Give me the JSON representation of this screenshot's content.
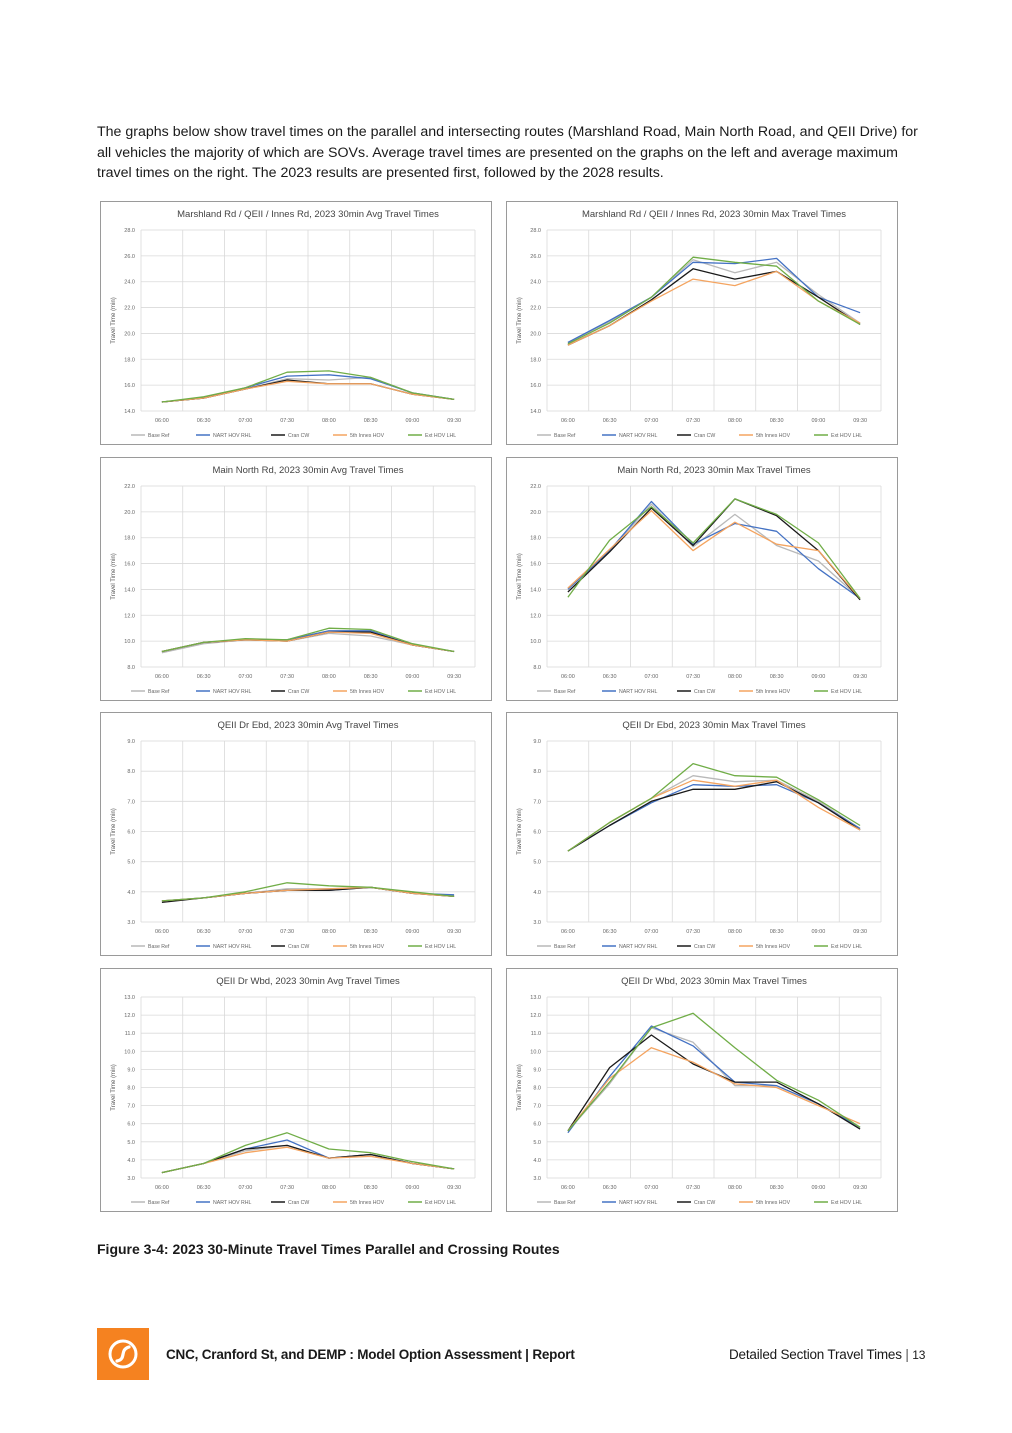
{
  "intro_text": "The graphs below show travel times on the parallel and intersecting routes (Marshland Road, Main North Road, and QEII Drive) for all vehicles the majority of which are SOVs. Average travel times are presented on the graphs on the left and average maximum travel times on the right.  The 2023 results are presented first, followed by the 2028 results.",
  "caption": "Figure 3-4: 2023 30-Minute Travel Times Parallel and Crossing Routes",
  "footer": {
    "report_title": "CNC, Cranford St, and DEMP : Model Option Assessment | Report",
    "section": "Detailed Section Travel Times",
    "separator": "|",
    "page": "13"
  },
  "series_colors": [
    "#b9b9b9",
    "#4472c4",
    "#1a1a1a",
    "#f4a460",
    "#70ad47"
  ],
  "chart_data": [
    {
      "type": "line",
      "title": "Marshland Rd / QEII / Innes Rd, 2023 30min Avg Travel Times",
      "ylabel": "Travel Time (min)",
      "xlabel": "",
      "x": [
        "06:00",
        "06:30",
        "07:00",
        "07:30",
        "08:00",
        "08:30",
        "09:00",
        "09:30"
      ],
      "ylim": [
        14,
        28
      ],
      "ystep": 2,
      "grid": true,
      "legend": "bottom",
      "series": [
        {
          "name": "Base Ref",
          "values": [
            14.7,
            15.0,
            15.7,
            16.5,
            16.4,
            16.6,
            15.4,
            14.9
          ]
        },
        {
          "name": "NART HOV RHL",
          "values": [
            14.7,
            15.0,
            15.8,
            16.7,
            16.8,
            16.5,
            15.4,
            14.9
          ]
        },
        {
          "name": "Cran CW",
          "values": [
            14.7,
            15.0,
            15.7,
            16.4,
            16.1,
            16.1,
            15.3,
            14.9
          ]
        },
        {
          "name": "5th Innes HOV",
          "values": [
            14.7,
            15.0,
            15.7,
            16.3,
            16.1,
            16.1,
            15.3,
            14.9
          ]
        },
        {
          "name": "Ext HOV LHL",
          "values": [
            14.7,
            15.1,
            15.8,
            17.0,
            17.1,
            16.6,
            15.4,
            14.9
          ]
        }
      ]
    },
    {
      "type": "line",
      "title": "Marshland Rd / QEII / Innes Rd, 2023 30min Max Travel Times",
      "ylabel": "Travel Time (min)",
      "xlabel": "",
      "x": [
        "06:00",
        "06:30",
        "07:00",
        "07:30",
        "08:00",
        "08:30",
        "09:00",
        "09:30"
      ],
      "ylim": [
        14,
        28
      ],
      "ystep": 2,
      "grid": true,
      "legend": "bottom",
      "series": [
        {
          "name": "Base Ref",
          "values": [
            19.3,
            20.9,
            22.8,
            25.7,
            24.7,
            25.5,
            23.0,
            20.8
          ]
        },
        {
          "name": "NART HOV RHL",
          "values": [
            19.3,
            21.0,
            22.8,
            25.5,
            25.4,
            25.8,
            22.8,
            21.6
          ]
        },
        {
          "name": "Cran CW",
          "values": [
            19.1,
            20.6,
            22.6,
            25.0,
            24.2,
            24.8,
            22.8,
            20.7
          ]
        },
        {
          "name": "5th Innes HOV",
          "values": [
            19.1,
            20.6,
            22.5,
            24.2,
            23.7,
            24.8,
            22.5,
            20.8
          ]
        },
        {
          "name": "Ext HOV LHL",
          "values": [
            19.2,
            20.8,
            22.8,
            25.9,
            25.5,
            25.2,
            22.5,
            20.7
          ]
        }
      ]
    },
    {
      "type": "line",
      "title": "Main North Rd, 2023 30min Avg Travel Times",
      "ylabel": "Travel Time (min)",
      "xlabel": "",
      "x": [
        "06:00",
        "06:30",
        "07:00",
        "07:30",
        "08:00",
        "08:30",
        "09:00",
        "09:30"
      ],
      "ylim": [
        8,
        22
      ],
      "ystep": 2,
      "grid": true,
      "legend": "bottom",
      "series": [
        {
          "name": "Base Ref",
          "values": [
            9.1,
            9.8,
            10.1,
            10.0,
            10.6,
            10.4,
            9.7,
            9.2
          ]
        },
        {
          "name": "NART HOV RHL",
          "values": [
            9.2,
            9.9,
            10.1,
            10.1,
            10.8,
            10.8,
            9.7,
            9.2
          ]
        },
        {
          "name": "Cran CW",
          "values": [
            9.2,
            9.9,
            10.1,
            10.0,
            10.7,
            10.7,
            9.7,
            9.2
          ]
        },
        {
          "name": "5th Innes HOV",
          "values": [
            9.2,
            9.9,
            10.1,
            10.0,
            10.7,
            10.6,
            9.7,
            9.2
          ]
        },
        {
          "name": "Ext HOV LHL",
          "values": [
            9.2,
            9.9,
            10.2,
            10.1,
            11.0,
            10.9,
            9.8,
            9.2
          ]
        }
      ]
    },
    {
      "type": "line",
      "title": "Main North Rd, 2023 30min Max Travel Times",
      "ylabel": "Travel Time (min)",
      "xlabel": "",
      "x": [
        "06:00",
        "06:30",
        "07:00",
        "07:30",
        "08:00",
        "08:30",
        "09:00",
        "09:30"
      ],
      "ylim": [
        8,
        22
      ],
      "ystep": 2,
      "grid": true,
      "legend": "bottom",
      "series": [
        {
          "name": "Base Ref",
          "values": [
            14.1,
            17.0,
            20.6,
            17.3,
            19.8,
            17.4,
            16.2,
            13.3
          ]
        },
        {
          "name": "NART HOV RHL",
          "values": [
            14.0,
            17.0,
            20.8,
            17.5,
            19.1,
            18.5,
            15.6,
            13.3
          ]
        },
        {
          "name": "Cran CW",
          "values": [
            13.8,
            16.9,
            20.3,
            17.4,
            21.0,
            19.7,
            17.0,
            13.2
          ]
        },
        {
          "name": "5th Innes HOV",
          "values": [
            14.1,
            17.1,
            20.1,
            17.0,
            19.2,
            17.5,
            17.0,
            13.3
          ]
        },
        {
          "name": "Ext HOV LHL",
          "values": [
            13.4,
            17.8,
            20.4,
            17.6,
            21.0,
            19.8,
            17.6,
            13.3
          ]
        }
      ]
    },
    {
      "type": "line",
      "title": "QEII Dr Ebd, 2023 30min Avg Travel Times",
      "ylabel": "Travel Time (min)",
      "xlabel": "",
      "x": [
        "06:00",
        "06:30",
        "07:00",
        "07:30",
        "08:00",
        "08:30",
        "09:00",
        "09:30"
      ],
      "ylim": [
        3,
        9
      ],
      "ystep": 1,
      "grid": true,
      "legend": "bottom",
      "series": [
        {
          "name": "Base Ref",
          "values": [
            3.7,
            3.8,
            3.95,
            4.1,
            4.1,
            4.15,
            3.95,
            3.85
          ]
        },
        {
          "name": "NART HOV RHL",
          "values": [
            3.7,
            3.8,
            3.95,
            4.05,
            4.05,
            4.15,
            3.95,
            3.9
          ]
        },
        {
          "name": "Cran CW",
          "values": [
            3.65,
            3.8,
            3.95,
            4.05,
            4.05,
            4.15,
            3.95,
            3.85
          ]
        },
        {
          "name": "5th Innes HOV",
          "values": [
            3.7,
            3.8,
            3.95,
            4.05,
            4.1,
            4.15,
            3.95,
            3.85
          ]
        },
        {
          "name": "Ext HOV LHL",
          "values": [
            3.7,
            3.8,
            4.0,
            4.3,
            4.2,
            4.15,
            4.0,
            3.85
          ]
        }
      ]
    },
    {
      "type": "line",
      "title": "QEII Dr Ebd, 2023 30min Max Travel Times",
      "ylabel": "Travel Time (min)",
      "xlabel": "",
      "x": [
        "06:00",
        "06:30",
        "07:00",
        "07:30",
        "08:00",
        "08:30",
        "09:00",
        "09:30"
      ],
      "ylim": [
        3,
        9
      ],
      "ystep": 1,
      "grid": true,
      "legend": "bottom",
      "series": [
        {
          "name": "Base Ref",
          "values": [
            5.35,
            6.3,
            7.1,
            7.85,
            7.65,
            7.7,
            7.0,
            6.1
          ]
        },
        {
          "name": "NART HOV RHL",
          "values": [
            5.35,
            6.2,
            6.95,
            7.55,
            7.5,
            7.55,
            6.95,
            6.1
          ]
        },
        {
          "name": "Cran CW",
          "values": [
            5.35,
            6.2,
            7.0,
            7.4,
            7.4,
            7.65,
            6.95,
            6.05
          ]
        },
        {
          "name": "5th Innes HOV",
          "values": [
            5.35,
            6.3,
            7.1,
            7.7,
            7.5,
            7.7,
            6.8,
            6.05
          ]
        },
        {
          "name": "Ext HOV LHL",
          "values": [
            5.35,
            6.3,
            7.1,
            8.25,
            7.85,
            7.8,
            7.05,
            6.2
          ]
        }
      ]
    },
    {
      "type": "line",
      "title": "QEII Dr Wbd, 2023 30min Avg Travel Times",
      "ylabel": "Travel Time (min)",
      "xlabel": "",
      "x": [
        "06:00",
        "06:30",
        "07:00",
        "07:30",
        "08:00",
        "08:30",
        "09:00",
        "09:30"
      ],
      "ylim": [
        3,
        13
      ],
      "ystep": 1,
      "grid": true,
      "legend": "bottom",
      "series": [
        {
          "name": "Base Ref",
          "values": [
            3.3,
            3.8,
            4.5,
            4.8,
            4.1,
            4.3,
            3.8,
            3.5
          ]
        },
        {
          "name": "NART HOV RHL",
          "values": [
            3.3,
            3.8,
            4.6,
            5.1,
            4.1,
            4.3,
            3.8,
            3.5
          ]
        },
        {
          "name": "Cran CW",
          "values": [
            3.3,
            3.8,
            4.6,
            4.8,
            4.1,
            4.3,
            3.8,
            3.5
          ]
        },
        {
          "name": "5th Innes HOV",
          "values": [
            3.3,
            3.8,
            4.4,
            4.7,
            4.1,
            4.2,
            3.8,
            3.5
          ]
        },
        {
          "name": "Ext HOV LHL",
          "values": [
            3.3,
            3.8,
            4.8,
            5.5,
            4.6,
            4.4,
            3.9,
            3.5
          ]
        }
      ]
    },
    {
      "type": "line",
      "title": "QEII Dr Wbd, 2023 30min Max Travel Times",
      "ylabel": "Travel Time (min)",
      "xlabel": "",
      "x": [
        "06:00",
        "06:30",
        "07:00",
        "07:30",
        "08:00",
        "08:30",
        "09:00",
        "09:30"
      ],
      "ylim": [
        3,
        13
      ],
      "ystep": 1,
      "grid": true,
      "legend": "bottom",
      "series": [
        {
          "name": "Base Ref",
          "values": [
            5.6,
            8.2,
            11.3,
            10.5,
            8.1,
            8.1,
            7.1,
            5.8
          ]
        },
        {
          "name": "NART HOV RHL",
          "values": [
            5.5,
            8.6,
            11.4,
            10.3,
            8.3,
            8.1,
            7.1,
            5.8
          ]
        },
        {
          "name": "Cran CW",
          "values": [
            5.6,
            9.1,
            10.9,
            9.3,
            8.3,
            8.3,
            7.1,
            5.7
          ]
        },
        {
          "name": "5th Innes HOV",
          "values": [
            5.6,
            8.5,
            10.2,
            9.4,
            8.2,
            8.0,
            7.0,
            6.0
          ]
        },
        {
          "name": "Ext HOV LHL",
          "values": [
            5.6,
            8.3,
            11.3,
            12.1,
            10.2,
            8.4,
            7.3,
            5.8
          ]
        }
      ]
    }
  ]
}
